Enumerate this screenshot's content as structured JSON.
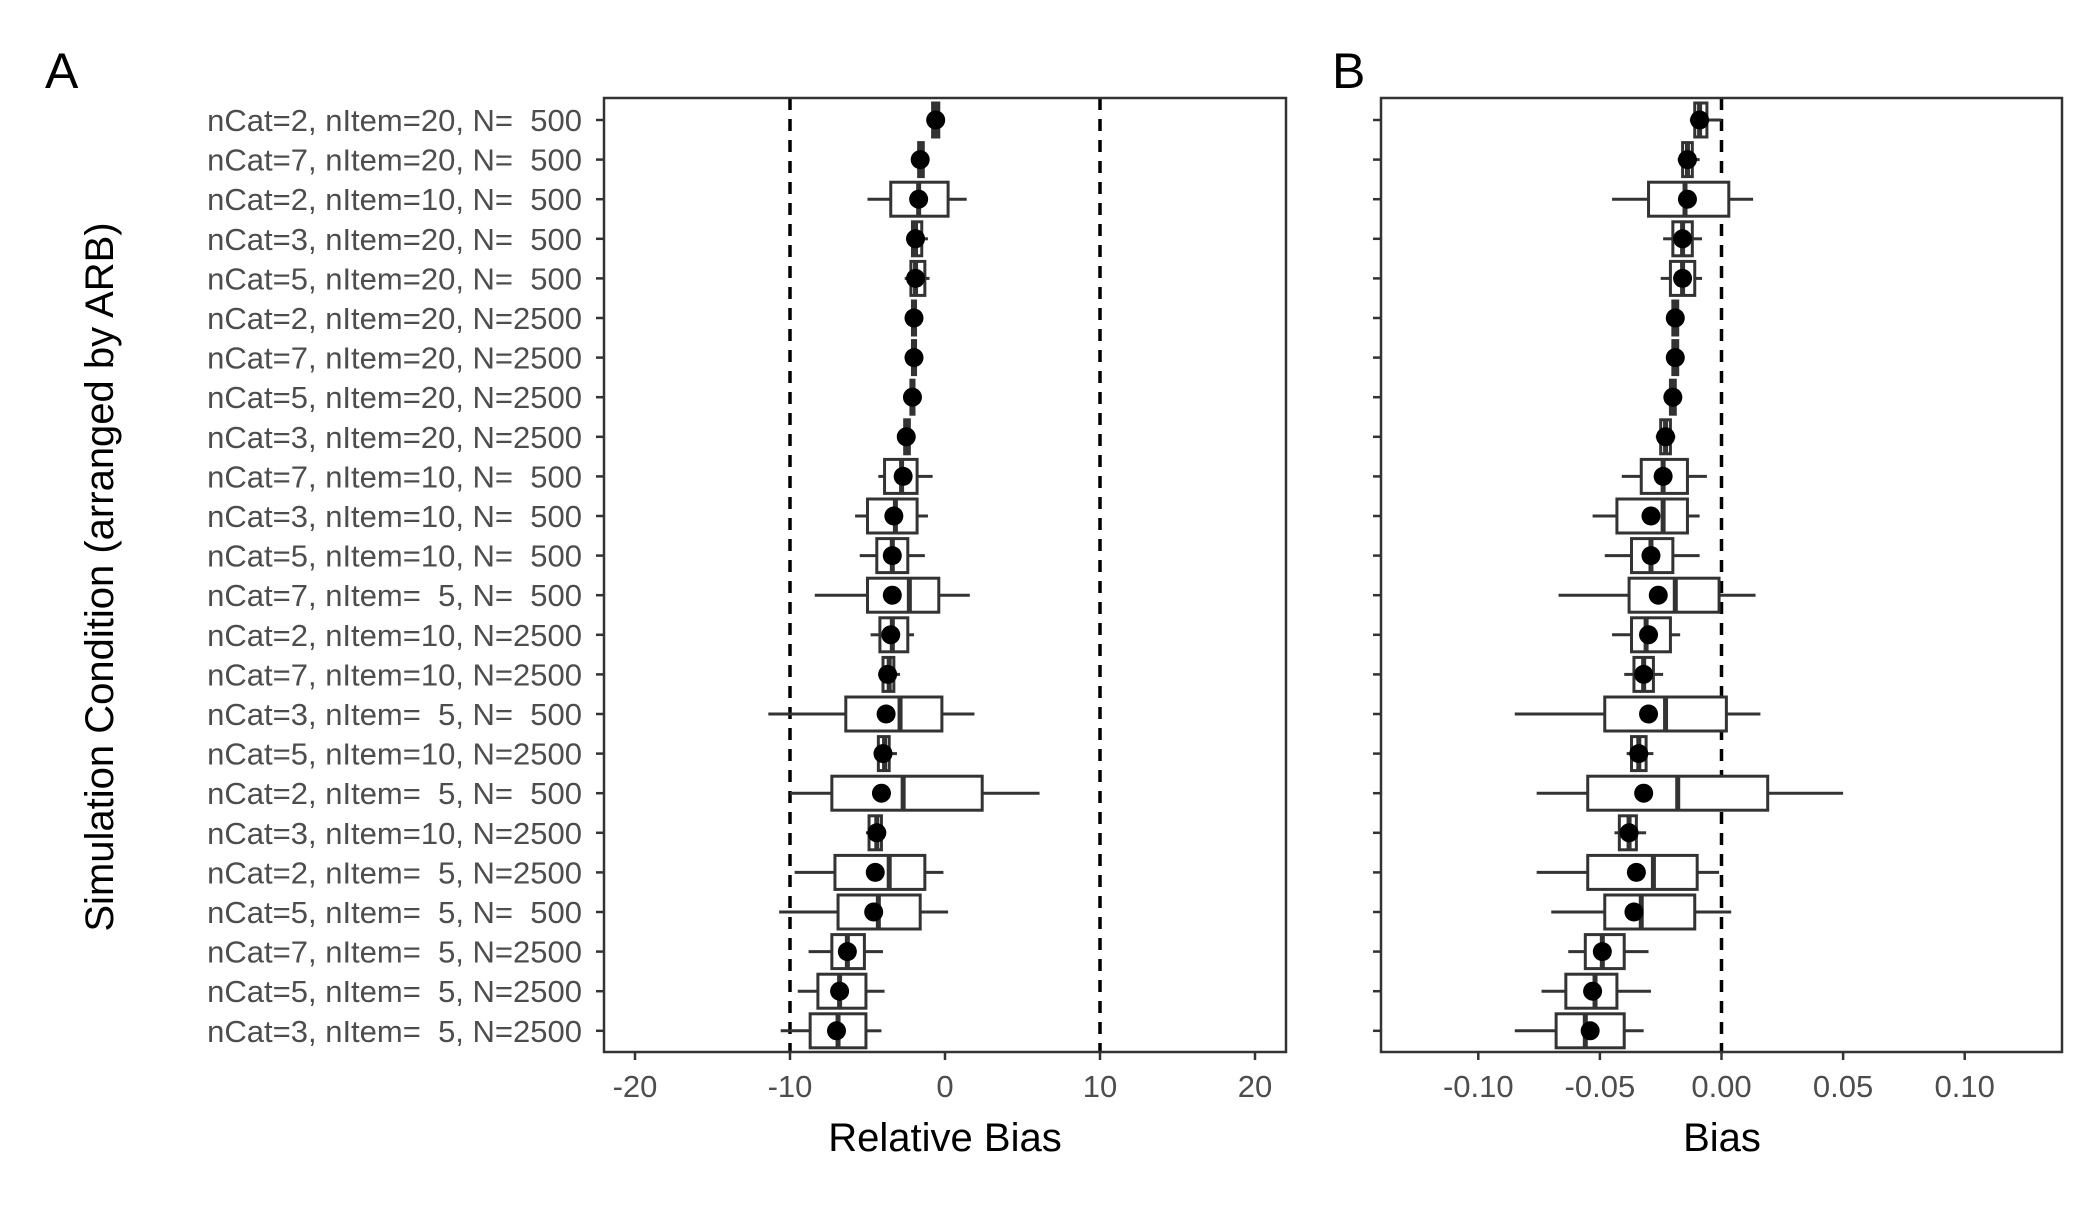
{
  "chart_data": [
    {
      "panel": "A",
      "type": "boxplot",
      "xlabel": "Relative Bias",
      "ylabel": "Simulation Condition (arranged by ARB)",
      "xlim": [
        -22,
        22
      ],
      "xticks": [
        -20,
        -10,
        0,
        10,
        20
      ],
      "reference_lines": [
        -10,
        10
      ],
      "grid": false,
      "categories": [
        "nCat=2, nItem=20, N=  500",
        "nCat=7, nItem=20, N=  500",
        "nCat=2, nItem=10, N=  500",
        "nCat=3, nItem=20, N=  500",
        "nCat=5, nItem=20, N=  500",
        "nCat=2, nItem=20, N=2500",
        "nCat=7, nItem=20, N=2500",
        "nCat=5, nItem=20, N=2500",
        "nCat=3, nItem=20, N=2500",
        "nCat=7, nItem=10, N=  500",
        "nCat=3, nItem=10, N=  500",
        "nCat=5, nItem=10, N=  500",
        "nCat=7, nItem=  5, N=  500",
        "nCat=2, nItem=10, N=2500",
        "nCat=7, nItem=10, N=2500",
        "nCat=3, nItem=  5, N=  500",
        "nCat=5, nItem=10, N=2500",
        "nCat=2, nItem=  5, N=  500",
        "nCat=3, nItem=10, N=2500",
        "nCat=2, nItem=  5, N=2500",
        "nCat=5, nItem=  5, N=  500",
        "nCat=7, nItem=  5, N=2500",
        "nCat=5, nItem=  5, N=2500",
        "nCat=3, nItem=  5, N=2500"
      ],
      "boxes": [
        {
          "wmin": -1.2,
          "q1": -0.8,
          "median": -0.6,
          "q3": -0.4,
          "wmax": -0.1,
          "mean": -0.6
        },
        {
          "wmin": -2.0,
          "q1": -1.7,
          "median": -1.6,
          "q3": -1.4,
          "wmax": -1.2,
          "mean": -1.6
        },
        {
          "wmin": -5.0,
          "q1": -3.5,
          "median": -1.7,
          "q3": 0.2,
          "wmax": 1.4,
          "mean": -1.7
        },
        {
          "wmin": -2.5,
          "q1": -2.1,
          "median": -1.9,
          "q3": -1.5,
          "wmax": -1.1,
          "mean": -1.9
        },
        {
          "wmin": -2.6,
          "q1": -2.2,
          "median": -1.9,
          "q3": -1.3,
          "wmax": -1.0,
          "mean": -1.9
        },
        {
          "wmin": -2.3,
          "q1": -2.1,
          "median": -2.0,
          "q3": -1.9,
          "wmax": -1.7,
          "mean": -2.0
        },
        {
          "wmin": -2.3,
          "q1": -2.1,
          "median": -2.0,
          "q3": -1.9,
          "wmax": -1.7,
          "mean": -2.0
        },
        {
          "wmin": -2.4,
          "q1": -2.2,
          "median": -2.1,
          "q3": -2.0,
          "wmax": -1.8,
          "mean": -2.1
        },
        {
          "wmin": -2.9,
          "q1": -2.6,
          "median": -2.5,
          "q3": -2.3,
          "wmax": -2.1,
          "mean": -2.5
        },
        {
          "wmin": -4.3,
          "q1": -3.9,
          "median": -2.8,
          "q3": -1.8,
          "wmax": -0.8,
          "mean": -2.7
        },
        {
          "wmin": -5.8,
          "q1": -5.0,
          "median": -3.2,
          "q3": -1.8,
          "wmax": -1.1,
          "mean": -3.3
        },
        {
          "wmin": -5.5,
          "q1": -4.4,
          "median": -3.4,
          "q3": -2.4,
          "wmax": -1.3,
          "mean": -3.4
        },
        {
          "wmin": -8.4,
          "q1": -5.0,
          "median": -2.3,
          "q3": -0.4,
          "wmax": 1.6,
          "mean": -3.4
        },
        {
          "wmin": -4.8,
          "q1": -4.2,
          "median": -3.4,
          "q3": -2.4,
          "wmax": -2.0,
          "mean": -3.5
        },
        {
          "wmin": -4.3,
          "q1": -4.0,
          "median": -3.6,
          "q3": -3.3,
          "wmax": -2.9,
          "mean": -3.7
        },
        {
          "wmin": -11.4,
          "q1": -6.4,
          "median": -2.9,
          "q3": -0.2,
          "wmax": 1.9,
          "mean": -3.8
        },
        {
          "wmin": -4.5,
          "q1": -4.3,
          "median": -3.9,
          "q3": -3.6,
          "wmax": -3.1,
          "mean": -4.0
        },
        {
          "wmin": -10.0,
          "q1": -7.3,
          "median": -2.7,
          "q3": 2.4,
          "wmax": 6.1,
          "mean": -4.1
        },
        {
          "wmin": -5.1,
          "q1": -4.9,
          "median": -4.4,
          "q3": -4.1,
          "wmax": -3.8,
          "mean": -4.4
        },
        {
          "wmin": -9.7,
          "q1": -7.1,
          "median": -3.6,
          "q3": -1.3,
          "wmax": -0.1,
          "mean": -4.5
        },
        {
          "wmin": -10.7,
          "q1": -6.9,
          "median": -4.3,
          "q3": -1.6,
          "wmax": 0.2,
          "mean": -4.6
        },
        {
          "wmin": -8.8,
          "q1": -7.3,
          "median": -6.3,
          "q3": -5.2,
          "wmax": -4.0,
          "mean": -6.3
        },
        {
          "wmin": -9.5,
          "q1": -8.2,
          "median": -6.8,
          "q3": -5.1,
          "wmax": -3.9,
          "mean": -6.8
        },
        {
          "wmin": -10.6,
          "q1": -8.7,
          "median": -6.9,
          "q3": -5.1,
          "wmax": -4.1,
          "mean": -7.0
        }
      ]
    },
    {
      "panel": "B",
      "type": "boxplot",
      "xlabel": "Bias",
      "ylabel": "",
      "xlim": [
        -0.14,
        0.14
      ],
      "xticks": [
        -0.1,
        -0.05,
        0.0,
        0.05,
        0.1
      ],
      "xtick_labels": [
        "-0.10",
        "-0.05",
        "0.00",
        "0.05",
        "0.10"
      ],
      "reference_lines": [
        0
      ],
      "grid": false,
      "boxes": [
        {
          "wmin": -0.013,
          "q1": -0.011,
          "median": -0.009,
          "q3": -0.006,
          "wmax": 0.0,
          "mean": -0.009
        },
        {
          "wmin": -0.018,
          "q1": -0.016,
          "median": -0.014,
          "q3": -0.012,
          "wmax": -0.009,
          "mean": -0.014
        },
        {
          "wmin": -0.045,
          "q1": -0.03,
          "median": -0.015,
          "q3": 0.003,
          "wmax": 0.013,
          "mean": -0.014
        },
        {
          "wmin": -0.024,
          "q1": -0.02,
          "median": -0.016,
          "q3": -0.012,
          "wmax": -0.008,
          "mean": -0.016
        },
        {
          "wmin": -0.025,
          "q1": -0.021,
          "median": -0.016,
          "q3": -0.011,
          "wmax": -0.008,
          "mean": -0.016
        },
        {
          "wmin": -0.021,
          "q1": -0.02,
          "median": -0.019,
          "q3": -0.018,
          "wmax": -0.016,
          "mean": -0.019
        },
        {
          "wmin": -0.021,
          "q1": -0.02,
          "median": -0.019,
          "q3": -0.018,
          "wmax": -0.016,
          "mean": -0.019
        },
        {
          "wmin": -0.022,
          "q1": -0.021,
          "median": -0.02,
          "q3": -0.019,
          "wmax": -0.017,
          "mean": -0.02
        },
        {
          "wmin": -0.027,
          "q1": -0.025,
          "median": -0.023,
          "q3": -0.021,
          "wmax": -0.019,
          "mean": -0.023
        },
        {
          "wmin": -0.041,
          "q1": -0.033,
          "median": -0.024,
          "q3": -0.014,
          "wmax": -0.006,
          "mean": -0.024
        },
        {
          "wmin": -0.053,
          "q1": -0.043,
          "median": -0.024,
          "q3": -0.014,
          "wmax": -0.009,
          "mean": -0.029
        },
        {
          "wmin": -0.048,
          "q1": -0.037,
          "median": -0.029,
          "q3": -0.02,
          "wmax": -0.009,
          "mean": -0.029
        },
        {
          "wmin": -0.067,
          "q1": -0.038,
          "median": -0.019,
          "q3": -0.001,
          "wmax": 0.014,
          "mean": -0.026
        },
        {
          "wmin": -0.045,
          "q1": -0.037,
          "median": -0.031,
          "q3": -0.021,
          "wmax": -0.017,
          "mean": -0.03
        },
        {
          "wmin": -0.04,
          "q1": -0.036,
          "median": -0.032,
          "q3": -0.028,
          "wmax": -0.024,
          "mean": -0.032
        },
        {
          "wmin": -0.085,
          "q1": -0.048,
          "median": -0.023,
          "q3": 0.002,
          "wmax": 0.016,
          "mean": -0.03
        },
        {
          "wmin": -0.039,
          "q1": -0.037,
          "median": -0.034,
          "q3": -0.031,
          "wmax": -0.028,
          "mean": -0.034
        },
        {
          "wmin": -0.076,
          "q1": -0.055,
          "median": -0.018,
          "q3": 0.019,
          "wmax": 0.05,
          "mean": -0.032
        },
        {
          "wmin": -0.044,
          "q1": -0.042,
          "median": -0.038,
          "q3": -0.035,
          "wmax": -0.031,
          "mean": -0.038
        },
        {
          "wmin": -0.076,
          "q1": -0.055,
          "median": -0.028,
          "q3": -0.01,
          "wmax": -0.001,
          "mean": -0.035
        },
        {
          "wmin": -0.07,
          "q1": -0.048,
          "median": -0.033,
          "q3": -0.011,
          "wmax": 0.004,
          "mean": -0.036
        },
        {
          "wmin": -0.063,
          "q1": -0.056,
          "median": -0.049,
          "q3": -0.04,
          "wmax": -0.03,
          "mean": -0.049
        },
        {
          "wmin": -0.074,
          "q1": -0.064,
          "median": -0.052,
          "q3": -0.043,
          "wmax": -0.029,
          "mean": -0.053
        },
        {
          "wmin": -0.085,
          "q1": -0.068,
          "median": -0.056,
          "q3": -0.04,
          "wmax": -0.032,
          "mean": -0.054
        }
      ]
    }
  ]
}
